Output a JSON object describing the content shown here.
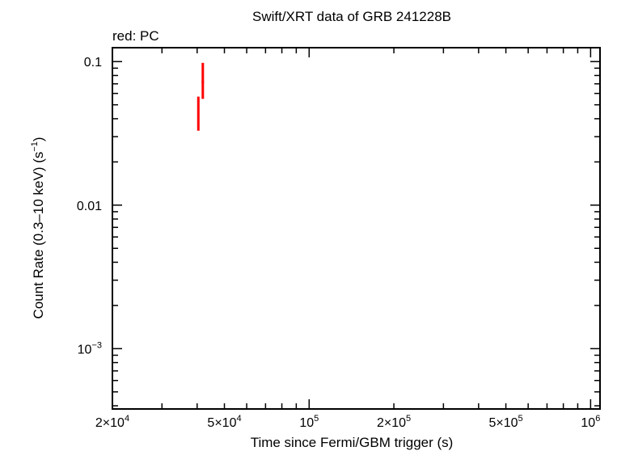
{
  "chart_data": {
    "type": "scatter",
    "title": "Swift/XRT data of GRB 241228B",
    "subtitle": "red: PC",
    "xlabel": "Time since Fermi/GBM trigger (s)",
    "ylabel": "Count Rate (0.3–10 keV) (s",
    "ylabel_sup": "−1",
    "ylabel_close": ")",
    "x_scale": "log",
    "y_scale": "log",
    "xlim": [
      20000,
      1080000
    ],
    "ylim": [
      0.00038,
      0.125
    ],
    "grid": false,
    "x_ticks": [
      {
        "value": 20000,
        "base": "2×10",
        "exp": "4"
      },
      {
        "value": 50000,
        "base": "5×10",
        "exp": "4"
      },
      {
        "value": 100000,
        "base": "10",
        "exp": "5"
      },
      {
        "value": 200000,
        "base": "2×10",
        "exp": "5"
      },
      {
        "value": 500000,
        "base": "5×10",
        "exp": "5"
      },
      {
        "value": 1000000,
        "base": "10",
        "exp": "6"
      }
    ],
    "y_ticks": [
      {
        "value": 0.1,
        "base": "0.1",
        "exp": ""
      },
      {
        "value": 0.01,
        "base": "0.01",
        "exp": ""
      },
      {
        "value": 0.001,
        "base": "10",
        "exp": "−3"
      }
    ],
    "series": [
      {
        "color": "#ff0000",
        "points": [
          {
            "x": 40400,
            "y": 0.046,
            "ylo": 0.033,
            "yhi": 0.057,
            "xlo": 40200,
            "xhi": 40600
          },
          {
            "x": 41900,
            "y": 0.072,
            "ylo": 0.055,
            "yhi": 0.098,
            "xlo": 41500,
            "xhi": 42300
          }
        ]
      }
    ]
  }
}
